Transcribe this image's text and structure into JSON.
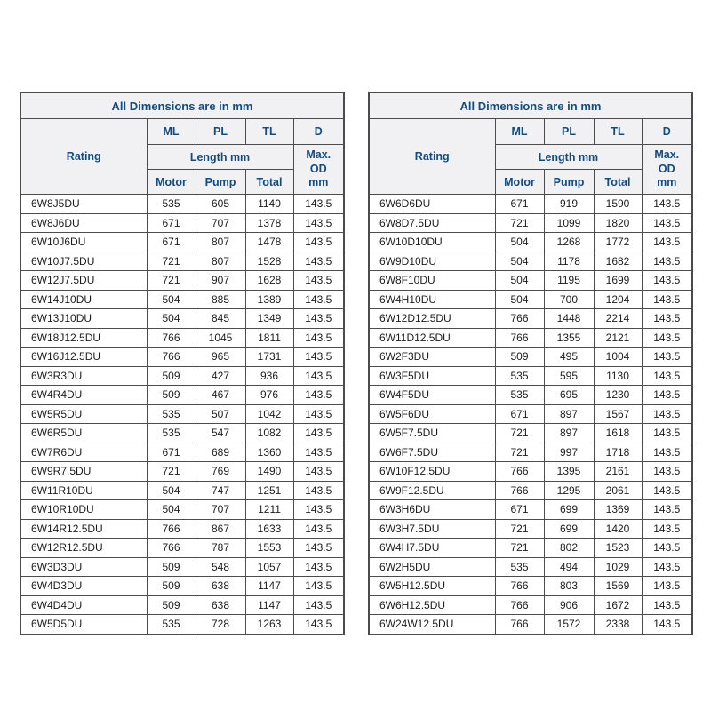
{
  "colors": {
    "header_text": "#134b7f",
    "header_bg": "#f1f1f3",
    "border": "#4c4c4c",
    "data_text": "#1c1c1c",
    "page_bg": "#ffffff"
  },
  "tables": [
    {
      "caption": "All Dimensions are in mm",
      "headers": {
        "rating": "Rating",
        "ml": "ML",
        "pl": "PL",
        "tl": "TL",
        "d": "D",
        "length": "Length mm",
        "motor": "Motor",
        "pump": "Pump",
        "total": "Total",
        "max_od": "Max. OD mm"
      },
      "rows": [
        [
          "6W8J5DU",
          "535",
          "605",
          "1140",
          "143.5"
        ],
        [
          "6W8J6DU",
          "671",
          "707",
          "1378",
          "143.5"
        ],
        [
          "6W10J6DU",
          "671",
          "807",
          "1478",
          "143.5"
        ],
        [
          "6W10J7.5DU",
          "721",
          "807",
          "1528",
          "143.5"
        ],
        [
          "6W12J7.5DU",
          "721",
          "907",
          "1628",
          "143.5"
        ],
        [
          "6W14J10DU",
          "504",
          "885",
          "1389",
          "143.5"
        ],
        [
          "6W13J10DU",
          "504",
          "845",
          "1349",
          "143.5"
        ],
        [
          "6W18J12.5DU",
          "766",
          "1045",
          "1811",
          "143.5"
        ],
        [
          "6W16J12.5DU",
          "766",
          "965",
          "1731",
          "143.5"
        ],
        [
          "6W3R3DU",
          "509",
          "427",
          "936",
          "143.5"
        ],
        [
          "6W4R4DU",
          "509",
          "467",
          "976",
          "143.5"
        ],
        [
          "6W5R5DU",
          "535",
          "507",
          "1042",
          "143.5"
        ],
        [
          "6W6R5DU",
          "535",
          "547",
          "1082",
          "143.5"
        ],
        [
          "6W7R6DU",
          "671",
          "689",
          "1360",
          "143.5"
        ],
        [
          "6W9R7.5DU",
          "721",
          "769",
          "1490",
          "143.5"
        ],
        [
          "6W11R10DU",
          "504",
          "747",
          "1251",
          "143.5"
        ],
        [
          "6W10R10DU",
          "504",
          "707",
          "1211",
          "143.5"
        ],
        [
          "6W14R12.5DU",
          "766",
          "867",
          "1633",
          "143.5"
        ],
        [
          "6W12R12.5DU",
          "766",
          "787",
          "1553",
          "143.5"
        ],
        [
          "6W3D3DU",
          "509",
          "548",
          "1057",
          "143.5"
        ],
        [
          "6W4D3DU",
          "509",
          "638",
          "1147",
          "143.5"
        ],
        [
          "6W4D4DU",
          "509",
          "638",
          "1147",
          "143.5"
        ],
        [
          "6W5D5DU",
          "535",
          "728",
          "1263",
          "143.5"
        ]
      ]
    },
    {
      "caption": "All Dimensions are in mm",
      "headers": {
        "rating": "Rating",
        "ml": "ML",
        "pl": "PL",
        "tl": "TL",
        "d": "D",
        "length": "Length mm",
        "motor": "Motor",
        "pump": "Pump",
        "total": "Total",
        "max_od": "Max. OD mm"
      },
      "rows": [
        [
          "6W6D6DU",
          "671",
          "919",
          "1590",
          "143.5"
        ],
        [
          "6W8D7.5DU",
          "721",
          "1099",
          "1820",
          "143.5"
        ],
        [
          "6W10D10DU",
          "504",
          "1268",
          "1772",
          "143.5"
        ],
        [
          "6W9D10DU",
          "504",
          "1178",
          "1682",
          "143.5"
        ],
        [
          "6W8F10DU",
          "504",
          "1195",
          "1699",
          "143.5"
        ],
        [
          "6W4H10DU",
          "504",
          "700",
          "1204",
          "143.5"
        ],
        [
          "6W12D12.5DU",
          "766",
          "1448",
          "2214",
          "143.5"
        ],
        [
          "6W11D12.5DU",
          "766",
          "1355",
          "2121",
          "143.5"
        ],
        [
          "6W2F3DU",
          "509",
          "495",
          "1004",
          "143.5"
        ],
        [
          "6W3F5DU",
          "535",
          "595",
          "1130",
          "143.5"
        ],
        [
          "6W4F5DU",
          "535",
          "695",
          "1230",
          "143.5"
        ],
        [
          "6W5F6DU",
          "671",
          "897",
          "1567",
          "143.5"
        ],
        [
          "6W5F7.5DU",
          "721",
          "897",
          "1618",
          "143.5"
        ],
        [
          "6W6F7.5DU",
          "721",
          "997",
          "1718",
          "143.5"
        ],
        [
          "6W10F12.5DU",
          "766",
          "1395",
          "2161",
          "143.5"
        ],
        [
          "6W9F12.5DU",
          "766",
          "1295",
          "2061",
          "143.5"
        ],
        [
          "6W3H6DU",
          "671",
          "699",
          "1369",
          "143.5"
        ],
        [
          "6W3H7.5DU",
          "721",
          "699",
          "1420",
          "143.5"
        ],
        [
          "6W4H7.5DU",
          "721",
          "802",
          "1523",
          "143.5"
        ],
        [
          "6W2H5DU",
          "535",
          "494",
          "1029",
          "143.5"
        ],
        [
          "6W5H12.5DU",
          "766",
          "803",
          "1569",
          "143.5"
        ],
        [
          "6W6H12.5DU",
          "766",
          "906",
          "1672",
          "143.5"
        ],
        [
          "6W24W12.5DU",
          "766",
          "1572",
          "2338",
          "143.5"
        ]
      ]
    }
  ]
}
